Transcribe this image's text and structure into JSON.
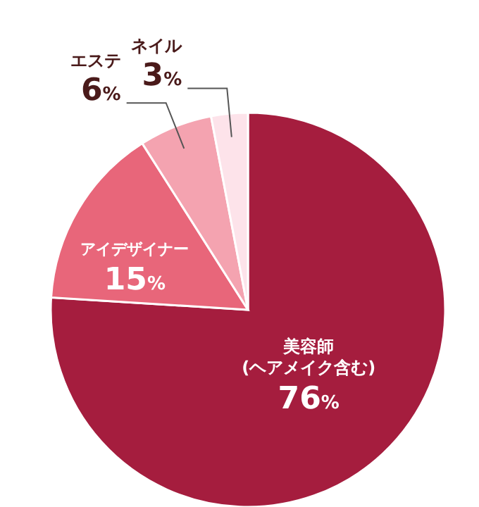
{
  "chart_data": {
    "type": "pie",
    "categories": [
      "美容師\n(ヘアメイク含む)",
      "アイデザイナー",
      "エステ",
      "ネイル"
    ],
    "values": [
      76,
      15,
      6,
      3
    ],
    "colors": [
      "#a51d3e",
      "#e8667a",
      "#f4a3b0",
      "#fde3ea"
    ],
    "value_labels": [
      "76%",
      "15%",
      "6%",
      "3%"
    ],
    "legend": false
  }
}
